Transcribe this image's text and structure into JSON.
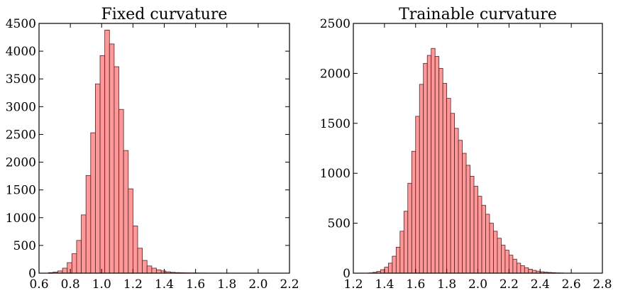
{
  "chart_data": [
    {
      "type": "bar",
      "title": "Fixed curvature",
      "xlabel": "",
      "ylabel": "",
      "xlim": [
        0.6,
        2.2
      ],
      "ylim": [
        0,
        4500
      ],
      "xticks": [
        "0.6",
        "0.8",
        "1.0",
        "1.2",
        "1.4",
        "1.6",
        "1.8",
        "2.0",
        "2.2"
      ],
      "yticks": [
        "0",
        "500",
        "1000",
        "1500",
        "2000",
        "2500",
        "3000",
        "3500",
        "4000",
        "4500"
      ],
      "color": "#ff7f7f",
      "bin_width": 0.03,
      "bins_start": 0.66,
      "values": [
        10,
        20,
        40,
        90,
        190,
        350,
        590,
        1050,
        1760,
        2530,
        3410,
        3920,
        4380,
        4130,
        3720,
        2950,
        2210,
        1520,
        850,
        450,
        230,
        130,
        90,
        60,
        40,
        25,
        15,
        10,
        8,
        6,
        5,
        4,
        3,
        3,
        2,
        2,
        2,
        1,
        1,
        1,
        1,
        1,
        1,
        1,
        1,
        0,
        0,
        0
      ]
    },
    {
      "type": "bar",
      "title": "Trainable curvature",
      "xlabel": "",
      "ylabel": "",
      "xlim": [
        1.2,
        2.8
      ],
      "ylim": [
        0,
        2500
      ],
      "xticks": [
        "1.2",
        "1.4",
        "1.6",
        "1.8",
        "2.0",
        "2.2",
        "2.4",
        "2.6",
        "2.8"
      ],
      "yticks": [
        "0",
        "500",
        "1000",
        "1500",
        "2000",
        "2500"
      ],
      "color": "#ff7f7f",
      "bin_width": 0.025,
      "bins_start": 1.3,
      "values": [
        3,
        8,
        18,
        35,
        60,
        100,
        170,
        260,
        420,
        620,
        900,
        1220,
        1570,
        1890,
        2100,
        2180,
        2250,
        2170,
        2050,
        1900,
        1750,
        1600,
        1450,
        1330,
        1200,
        1080,
        970,
        870,
        770,
        680,
        590,
        500,
        420,
        350,
        280,
        230,
        180,
        140,
        100,
        75,
        55,
        40,
        28,
        20,
        14,
        10,
        7,
        5,
        3,
        2
      ]
    }
  ]
}
